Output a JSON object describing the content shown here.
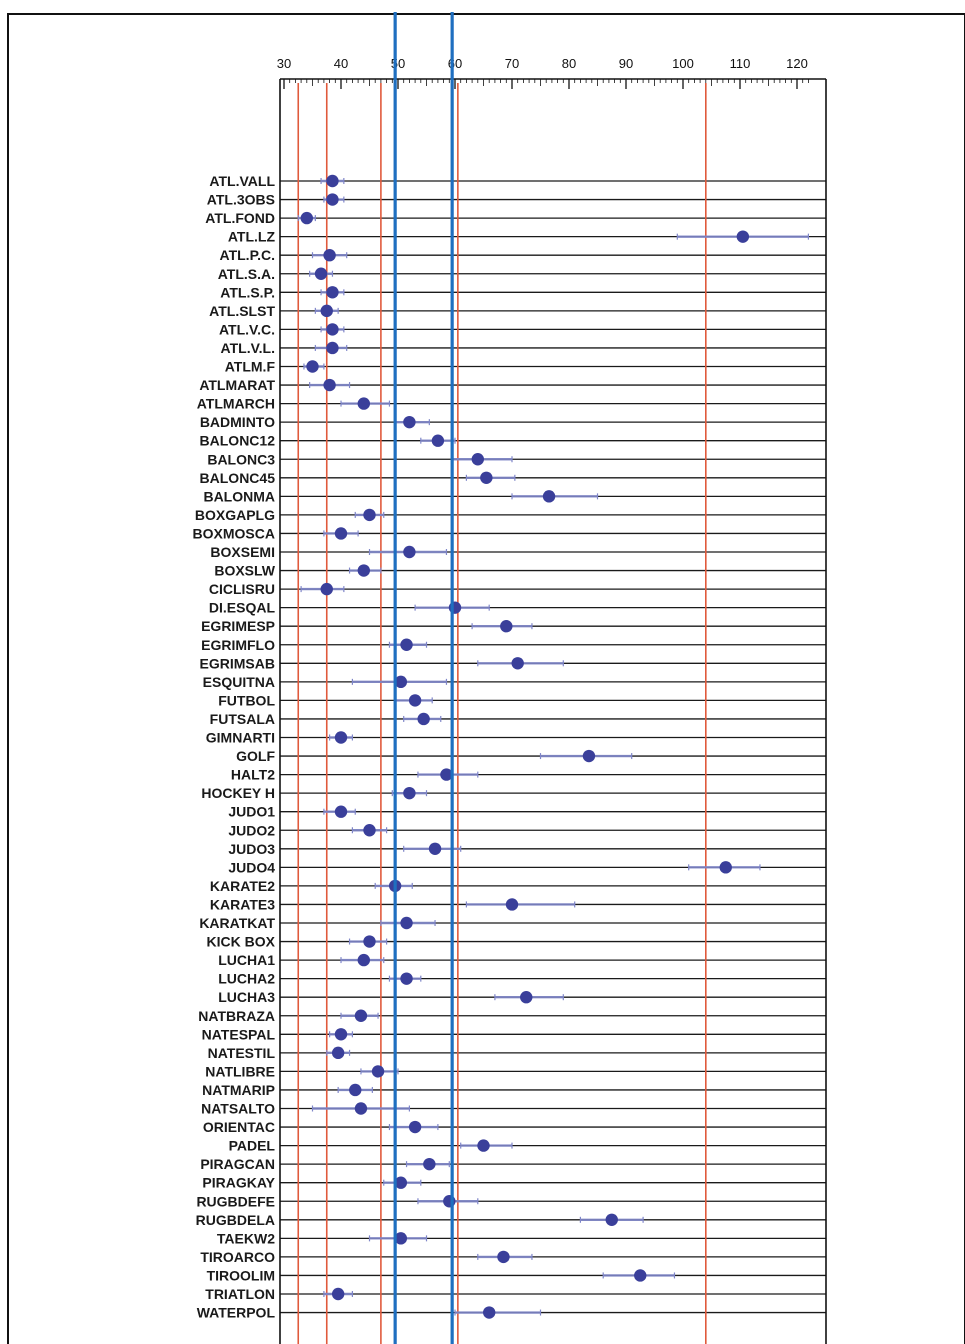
{
  "chart_data": {
    "type": "scatter",
    "title": "",
    "xlabel": "",
    "ylabel": "",
    "x_ticks": [
      30,
      40,
      50,
      60,
      70,
      80,
      90,
      100,
      110,
      120
    ],
    "xlim": [
      30,
      122
    ],
    "grid": "horizontal",
    "reference_lines_red": [
      32.5,
      37.5,
      47,
      60.5,
      104
    ],
    "reference_lines_blue": [
      49.5,
      59.5
    ],
    "colors": {
      "point": "#3a3f9a",
      "whisker": "#7f86c8",
      "red_line": "#e05a3c",
      "blue_line": "#1f6fc0",
      "grid": "#1a1a1a"
    },
    "categories": [
      "ATL.VALL",
      "ATL.3OBS",
      "ATL.FOND",
      "ATL.LZ",
      "ATL.P.C.",
      "ATL.S.A.",
      "ATL.S.P.",
      "ATL.SLST",
      "ATL.V.C.",
      "ATL.V.L.",
      "ATLM.F",
      "ATLMARAT",
      "ATLMARCH",
      "BADMINTO",
      "BALONC12",
      "BALONC3",
      "BALONC45",
      "BALONMA",
      "BOXGAPLG",
      "BOXMOSCA",
      "BOXSEMI",
      "BOXSLW",
      "CICLISRU",
      "DI.ESQAL",
      "EGRIMESP",
      "EGRIMFLO",
      "EGRIMSAB",
      "ESQUITNA",
      "FUTBOL",
      "FUTSALA",
      "GIMNARTI",
      "GOLF",
      "HALT2",
      "HOCKEY H",
      "JUDO1",
      "JUDO2",
      "JUDO3",
      "JUDO4",
      "KARATE2",
      "KARATE3",
      "KARATKAT",
      "KICK BOX",
      "LUCHA1",
      "LUCHA2",
      "LUCHA3",
      "NATBRAZA",
      "NATESPAL",
      "NATESTIL",
      "NATLIBRE",
      "NATMARIP",
      "NATSALTO",
      "ORIENTAC",
      "PADEL",
      "PIRAGCAN",
      "PIRAGKAY",
      "RUGBDEFE",
      "RUGBDELA",
      "TAEKW2",
      "TIROARCO",
      "TIROOLIM",
      "TRIATLON",
      "WATERPOL"
    ],
    "values": [
      38.5,
      38.5,
      34,
      110.5,
      38,
      36.5,
      38.5,
      37.5,
      38.5,
      38.5,
      35,
      38,
      44,
      52,
      57,
      64,
      65.5,
      76.5,
      45,
      40,
      52,
      44,
      37.5,
      60,
      69,
      51.5,
      71,
      50.5,
      53,
      54.5,
      40,
      83.5,
      58.5,
      52,
      40,
      45,
      56.5,
      107.5,
      49.5,
      70,
      51.5,
      45,
      44,
      51.5,
      72.5,
      43.5,
      40,
      39.5,
      46.5,
      42.5,
      43.5,
      53,
      65,
      55.5,
      50.5,
      59,
      87.5,
      50.5,
      68.5,
      92.5,
      39.5,
      66
    ],
    "low": [
      36.5,
      37,
      32.5,
      99,
      35,
      34.5,
      36.5,
      35.5,
      36.5,
      35.5,
      33.5,
      34.5,
      40,
      49.5,
      54,
      59.5,
      62,
      70,
      42.5,
      37,
      45,
      41.5,
      33,
      53,
      63,
      48.5,
      64,
      42,
      49.5,
      51,
      38,
      75,
      53.5,
      49,
      37,
      42,
      51,
      101,
      46,
      62,
      47,
      41.5,
      40,
      48.5,
      67,
      40,
      38,
      37.5,
      43.5,
      39.5,
      35,
      48.5,
      61,
      51.5,
      47.5,
      53.5,
      82,
      45,
      64,
      86,
      37,
      60
    ],
    "high": [
      40.5,
      40.5,
      35.5,
      122,
      41,
      38.5,
      40.5,
      39.5,
      40.5,
      41,
      37,
      41.5,
      48.5,
      55.5,
      60,
      70,
      70.5,
      85,
      47.5,
      43,
      58.5,
      47,
      40.5,
      66,
      73.5,
      55,
      79,
      58.5,
      56,
      57.5,
      42,
      91,
      64,
      55,
      42.5,
      48,
      61,
      113.5,
      52.5,
      81,
      56.5,
      48,
      47.5,
      54,
      79,
      46.5,
      42,
      41.5,
      50,
      45.5,
      52,
      57,
      70,
      59,
      54,
      64,
      93,
      55,
      73.5,
      98.5,
      42,
      75
    ]
  }
}
